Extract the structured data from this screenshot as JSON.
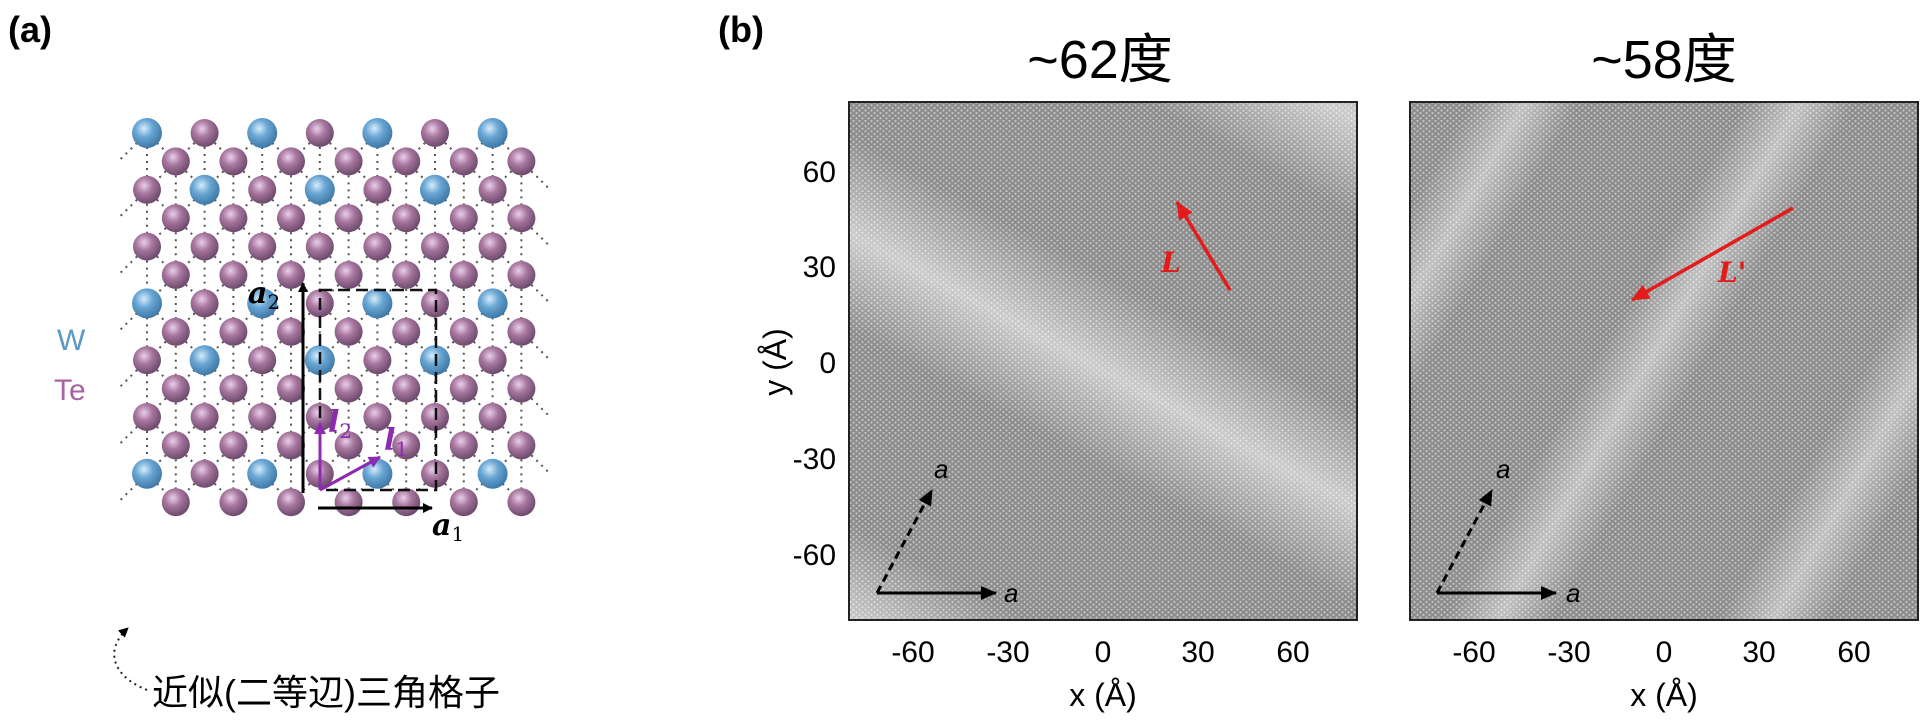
{
  "panel_a": {
    "label": "(a)",
    "legend": {
      "w": "W",
      "te": "Te"
    },
    "vectors": {
      "a2_base": "a",
      "a2_sub": "2",
      "a1_base": "a",
      "a1_sub": "1",
      "l2_base": "l",
      "l2_sub": "2",
      "l1_base": "l",
      "l1_sub": "1"
    },
    "caption": "近似(二等辺)三角格子"
  },
  "panel_b": {
    "label": "(b)",
    "left": {
      "title": "~62度",
      "arrow_label": "L",
      "basis_label_1": "a",
      "basis_label_2": "a"
    },
    "right": {
      "title": "~58度",
      "arrow_label": "L'",
      "basis_label_1": "a",
      "basis_label_2": "a"
    }
  },
  "axes": {
    "xlabel": "x (Å)",
    "ylabel": "y (Å)",
    "x_ticks": [
      "-60",
      "-30",
      "0",
      "30",
      "60"
    ],
    "y_ticks": [
      "60",
      "30",
      "0",
      "-30",
      "-60"
    ]
  },
  "colors": {
    "w_atom": "#5d99c6",
    "te_atom": "#9c6b9e",
    "accent": "#e31b1b",
    "vector": "#8d2bb0"
  }
}
